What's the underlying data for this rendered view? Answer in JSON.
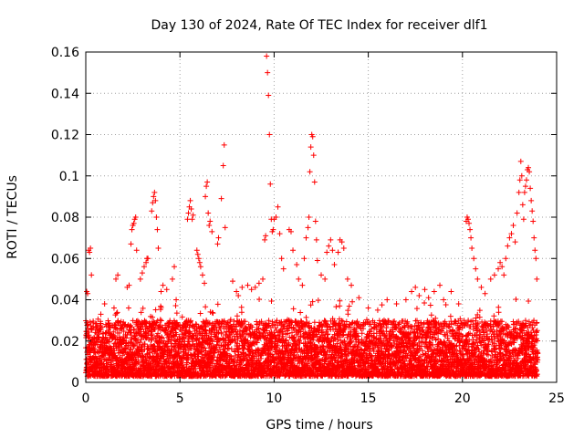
{
  "chart_data": {
    "type": "scatter",
    "title": "Day 130 of 2024, Rate Of TEC Index for receiver dlf1",
    "xlabel": "GPS time / hours",
    "ylabel": "ROTI / TECUs",
    "xlim": [
      0,
      25
    ],
    "ylim": [
      0,
      0.16
    ],
    "x_ticks": [
      "0",
      "5",
      "10",
      "15",
      "20",
      "25"
    ],
    "y_ticks": [
      "0",
      "0.02",
      "0.04",
      "0.06",
      "0.08",
      "0.1",
      "0.12",
      "0.14",
      "0.16"
    ],
    "grid": true,
    "marker": "+",
    "color": "#ff0000",
    "series": [
      {
        "name": "ROTI",
        "points": [
          [
            0.05,
            0.044
          ],
          [
            0.1,
            0.043
          ],
          [
            0.15,
            0.064
          ],
          [
            0.2,
            0.063
          ],
          [
            0.25,
            0.065
          ],
          [
            0.3,
            0.052
          ],
          [
            0.8,
            0.033
          ],
          [
            1.0,
            0.038
          ],
          [
            1.5,
            0.036
          ],
          [
            1.6,
            0.05
          ],
          [
            1.7,
            0.052
          ],
          [
            2.2,
            0.046
          ],
          [
            2.3,
            0.047
          ],
          [
            2.4,
            0.067
          ],
          [
            2.45,
            0.074
          ],
          [
            2.5,
            0.076
          ],
          [
            2.55,
            0.077
          ],
          [
            2.6,
            0.079
          ],
          [
            2.65,
            0.08
          ],
          [
            2.7,
            0.064
          ],
          [
            2.9,
            0.05
          ],
          [
            3.0,
            0.053
          ],
          [
            3.1,
            0.056
          ],
          [
            3.2,
            0.058
          ],
          [
            3.25,
            0.06
          ],
          [
            3.3,
            0.06
          ],
          [
            3.5,
            0.083
          ],
          [
            3.55,
            0.087
          ],
          [
            3.6,
            0.09
          ],
          [
            3.65,
            0.092
          ],
          [
            3.7,
            0.088
          ],
          [
            3.75,
            0.08
          ],
          [
            3.8,
            0.074
          ],
          [
            3.85,
            0.065
          ],
          [
            4.0,
            0.044
          ],
          [
            4.1,
            0.047
          ],
          [
            4.3,
            0.045
          ],
          [
            4.6,
            0.05
          ],
          [
            4.7,
            0.056
          ],
          [
            4.8,
            0.04
          ],
          [
            5.4,
            0.079
          ],
          [
            5.45,
            0.082
          ],
          [
            5.5,
            0.085
          ],
          [
            5.55,
            0.088
          ],
          [
            5.6,
            0.084
          ],
          [
            5.65,
            0.079
          ],
          [
            5.7,
            0.081
          ],
          [
            5.9,
            0.064
          ],
          [
            5.95,
            0.062
          ],
          [
            6.0,
            0.06
          ],
          [
            6.05,
            0.058
          ],
          [
            6.1,
            0.056
          ],
          [
            6.2,
            0.052
          ],
          [
            6.3,
            0.048
          ],
          [
            6.35,
            0.09
          ],
          [
            6.4,
            0.095
          ],
          [
            6.45,
            0.097
          ],
          [
            6.5,
            0.082
          ],
          [
            6.55,
            0.076
          ],
          [
            6.6,
            0.078
          ],
          [
            6.7,
            0.073
          ],
          [
            7.0,
            0.067
          ],
          [
            7.05,
            0.07
          ],
          [
            7.2,
            0.089
          ],
          [
            7.3,
            0.105
          ],
          [
            7.35,
            0.115
          ],
          [
            7.4,
            0.075
          ],
          [
            7.8,
            0.049
          ],
          [
            8.0,
            0.044
          ],
          [
            8.1,
            0.042
          ],
          [
            8.3,
            0.046
          ],
          [
            8.6,
            0.047
          ],
          [
            8.8,
            0.045
          ],
          [
            9.0,
            0.046
          ],
          [
            9.2,
            0.048
          ],
          [
            9.4,
            0.05
          ],
          [
            9.5,
            0.069
          ],
          [
            9.55,
            0.071
          ],
          [
            9.6,
            0.158
          ],
          [
            9.65,
            0.15
          ],
          [
            9.7,
            0.139
          ],
          [
            9.75,
            0.12
          ],
          [
            9.8,
            0.096
          ],
          [
            9.85,
            0.079
          ],
          [
            9.9,
            0.073
          ],
          [
            9.95,
            0.074
          ],
          [
            10.0,
            0.079
          ],
          [
            10.1,
            0.08
          ],
          [
            10.2,
            0.085
          ],
          [
            10.3,
            0.072
          ],
          [
            10.4,
            0.06
          ],
          [
            10.5,
            0.055
          ],
          [
            10.8,
            0.074
          ],
          [
            10.9,
            0.073
          ],
          [
            11.0,
            0.064
          ],
          [
            11.2,
            0.057
          ],
          [
            11.3,
            0.05
          ],
          [
            11.5,
            0.047
          ],
          [
            11.6,
            0.06
          ],
          [
            11.7,
            0.07
          ],
          [
            11.8,
            0.075
          ],
          [
            11.85,
            0.08
          ],
          [
            11.9,
            0.102
          ],
          [
            11.95,
            0.114
          ],
          [
            12.0,
            0.12
          ],
          [
            12.05,
            0.119
          ],
          [
            12.1,
            0.11
          ],
          [
            12.15,
            0.097
          ],
          [
            12.2,
            0.078
          ],
          [
            12.25,
            0.069
          ],
          [
            12.3,
            0.059
          ],
          [
            12.5,
            0.052
          ],
          [
            12.7,
            0.05
          ],
          [
            12.8,
            0.063
          ],
          [
            12.9,
            0.066
          ],
          [
            13.0,
            0.069
          ],
          [
            13.1,
            0.064
          ],
          [
            13.2,
            0.057
          ],
          [
            13.4,
            0.063
          ],
          [
            13.5,
            0.069
          ],
          [
            13.6,
            0.068
          ],
          [
            13.7,
            0.065
          ],
          [
            13.9,
            0.05
          ],
          [
            14.1,
            0.047
          ],
          [
            14.5,
            0.041
          ],
          [
            15.0,
            0.036
          ],
          [
            15.5,
            0.035
          ],
          [
            16.0,
            0.04
          ],
          [
            16.5,
            0.038
          ],
          [
            17.0,
            0.04
          ],
          [
            17.3,
            0.044
          ],
          [
            17.5,
            0.046
          ],
          [
            17.7,
            0.042
          ],
          [
            18.0,
            0.045
          ],
          [
            18.2,
            0.041
          ],
          [
            18.5,
            0.044
          ],
          [
            18.8,
            0.047
          ],
          [
            19.0,
            0.04
          ],
          [
            19.4,
            0.044
          ],
          [
            19.8,
            0.038
          ],
          [
            20.2,
            0.078
          ],
          [
            20.25,
            0.08
          ],
          [
            20.3,
            0.079
          ],
          [
            20.35,
            0.077
          ],
          [
            20.4,
            0.074
          ],
          [
            20.45,
            0.07
          ],
          [
            20.5,
            0.065
          ],
          [
            20.6,
            0.06
          ],
          [
            20.7,
            0.055
          ],
          [
            20.8,
            0.05
          ],
          [
            21.0,
            0.046
          ],
          [
            21.2,
            0.043
          ],
          [
            21.5,
            0.05
          ],
          [
            21.7,
            0.052
          ],
          [
            21.9,
            0.055
          ],
          [
            22.0,
            0.058
          ],
          [
            22.1,
            0.056
          ],
          [
            22.2,
            0.052
          ],
          [
            22.3,
            0.06
          ],
          [
            22.4,
            0.066
          ],
          [
            22.5,
            0.07
          ],
          [
            22.6,
            0.072
          ],
          [
            22.7,
            0.076
          ],
          [
            22.8,
            0.068
          ],
          [
            22.9,
            0.082
          ],
          [
            23.0,
            0.092
          ],
          [
            23.05,
            0.098
          ],
          [
            23.1,
            0.107
          ],
          [
            23.15,
            0.1
          ],
          [
            23.2,
            0.086
          ],
          [
            23.25,
            0.079
          ],
          [
            23.3,
            0.092
          ],
          [
            23.35,
            0.095
          ],
          [
            23.4,
            0.098
          ],
          [
            23.45,
            0.103
          ],
          [
            23.5,
            0.104
          ],
          [
            23.55,
            0.102
          ],
          [
            23.6,
            0.094
          ],
          [
            23.65,
            0.088
          ],
          [
            23.7,
            0.083
          ],
          [
            23.75,
            0.078
          ],
          [
            23.8,
            0.07
          ],
          [
            23.85,
            0.064
          ],
          [
            23.9,
            0.06
          ],
          [
            23.95,
            0.05
          ]
        ]
      }
    ],
    "dense_band": {
      "description": "continuous background of ROTI samples every ~0.01 h",
      "x_range": [
        0,
        24
      ],
      "y_typical": [
        0.003,
        0.03
      ]
    }
  }
}
